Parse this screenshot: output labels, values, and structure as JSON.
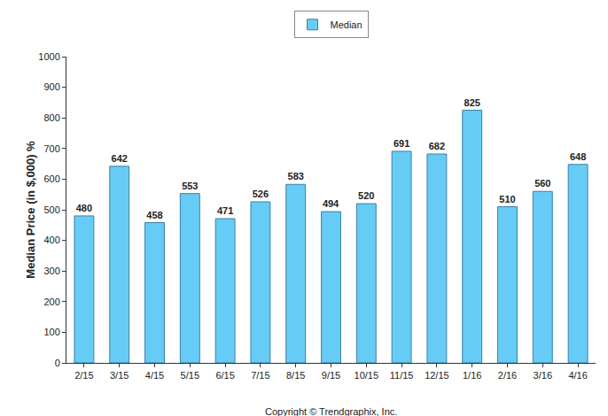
{
  "chart_data": {
    "type": "bar",
    "y_label": "Median Price (in $,000) %",
    "categories": [
      "2/15",
      "3/15",
      "4/15",
      "5/15",
      "6/15",
      "7/15",
      "8/15",
      "9/15",
      "10/15",
      "11/15",
      "12/15",
      "1/16",
      "2/16",
      "3/16",
      "4/16"
    ],
    "series": [
      {
        "name": "Median",
        "color": "#66ccf5",
        "values": [
          480,
          642,
          458,
          553,
          471,
          526,
          583,
          494,
          520,
          691,
          682,
          825,
          510,
          560,
          648
        ]
      }
    ],
    "ylim": [
      0,
      1000
    ],
    "yticks": [
      0,
      100,
      200,
      300,
      400,
      500,
      600,
      700,
      800,
      900,
      1000
    ],
    "grid": false,
    "legend": "top",
    "data_labels": true,
    "annotations": [
      "Copyright © Trendgraphix, Inc."
    ]
  }
}
